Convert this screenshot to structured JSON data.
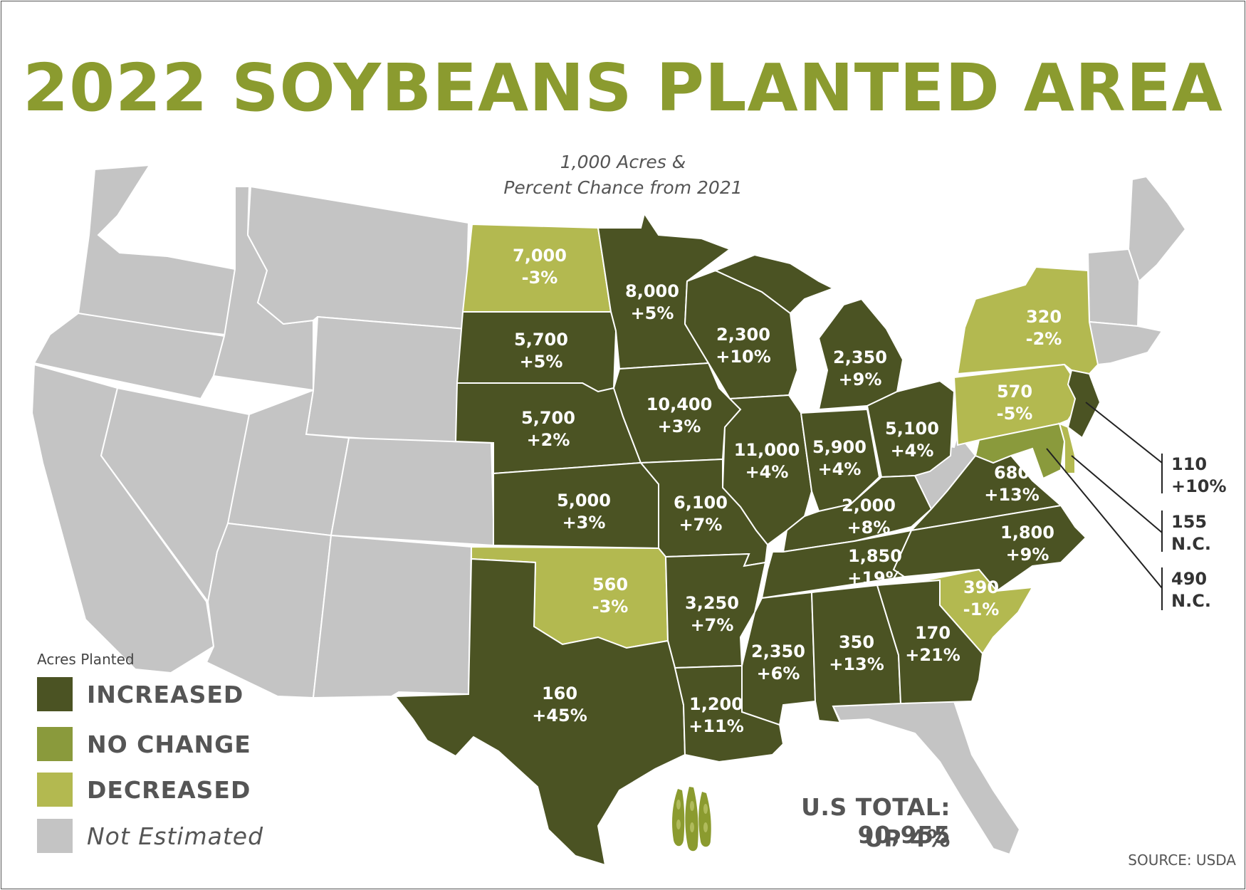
{
  "title": "2022 SOYBEANS PLANTED AREA",
  "subtitle_line1": "1,000 Acres &",
  "subtitle_line2": "Percent Chance from 2021",
  "colors": {
    "increased": "#4b5323",
    "no_change": "#8a9a3c",
    "decreased": "#b3b950",
    "not_estimated": "#c4c4c4",
    "title": "#8b9b2f"
  },
  "states": [
    {
      "id": "ND",
      "status": "decreased",
      "acres": "7,000",
      "change": "-3%"
    },
    {
      "id": "MN",
      "status": "increased",
      "acres": "8,000",
      "change": "+5%"
    },
    {
      "id": "SD",
      "status": "increased",
      "acres": "5,700",
      "change": "+5%"
    },
    {
      "id": "WI",
      "status": "increased",
      "acres": "2,300",
      "change": "+10%"
    },
    {
      "id": "MI",
      "status": "increased",
      "acres": "2,350",
      "change": "+9%"
    },
    {
      "id": "NE",
      "status": "increased",
      "acres": "5,700",
      "change": "+2%"
    },
    {
      "id": "IA",
      "status": "increased",
      "acres": "10,400",
      "change": "+3%"
    },
    {
      "id": "IL",
      "status": "increased",
      "acres": "11,000",
      "change": "+4%"
    },
    {
      "id": "IN",
      "status": "increased",
      "acres": "5,900",
      "change": "+4%"
    },
    {
      "id": "OH",
      "status": "increased",
      "acres": "5,100",
      "change": "+4%"
    },
    {
      "id": "NY",
      "status": "decreased",
      "acres": "320",
      "change": "-2%"
    },
    {
      "id": "PA",
      "status": "decreased",
      "acres": "570",
      "change": "-5%"
    },
    {
      "id": "KS",
      "status": "increased",
      "acres": "5,000",
      "change": "+3%"
    },
    {
      "id": "MO",
      "status": "increased",
      "acres": "6,100",
      "change": "+7%"
    },
    {
      "id": "KY",
      "status": "increased",
      "acres": "2,000",
      "change": "+8%"
    },
    {
      "id": "VA",
      "status": "increased",
      "acres": "680",
      "change": "+13%"
    },
    {
      "id": "NC",
      "status": "increased",
      "acres": "1,800",
      "change": "+9%"
    },
    {
      "id": "TN",
      "status": "increased",
      "acres": "1,850",
      "change": "+19%"
    },
    {
      "id": "OK",
      "status": "decreased",
      "acres": "560",
      "change": "-3%"
    },
    {
      "id": "AR",
      "status": "increased",
      "acres": "3,250",
      "change": "+7%"
    },
    {
      "id": "SC",
      "status": "decreased",
      "acres": "390",
      "change": "-1%"
    },
    {
      "id": "MS",
      "status": "increased",
      "acres": "2,350",
      "change": "+6%"
    },
    {
      "id": "AL",
      "status": "increased",
      "acres": "350",
      "change": "+13%"
    },
    {
      "id": "GA",
      "status": "increased",
      "acres": "170",
      "change": "+21%"
    },
    {
      "id": "TX",
      "status": "increased",
      "acres": "160",
      "change": "+45%"
    },
    {
      "id": "LA",
      "status": "increased",
      "acres": "1,200",
      "change": "+11%"
    },
    {
      "id": "NJ",
      "status": "increased",
      "acres": "110",
      "change": "+10%"
    },
    {
      "id": "DE",
      "status": "no_change",
      "acres": "155",
      "change": "N.C."
    },
    {
      "id": "MD",
      "status": "no_change",
      "acres": "490",
      "change": "N.C."
    }
  ],
  "legend": {
    "title": "Acres Planted",
    "items": [
      {
        "label": "INCREASED",
        "color": "#4b5323"
      },
      {
        "label": "NO CHANGE",
        "color": "#8a9a3c"
      },
      {
        "label": "DECREASED",
        "color": "#b3b950"
      },
      {
        "label": "Not Estimated",
        "color": "#c4c4c4"
      }
    ]
  },
  "total_line1": "U.S TOTAL: 90,955",
  "total_line2": "UP  4%",
  "source": "SOURCE: USDA"
}
